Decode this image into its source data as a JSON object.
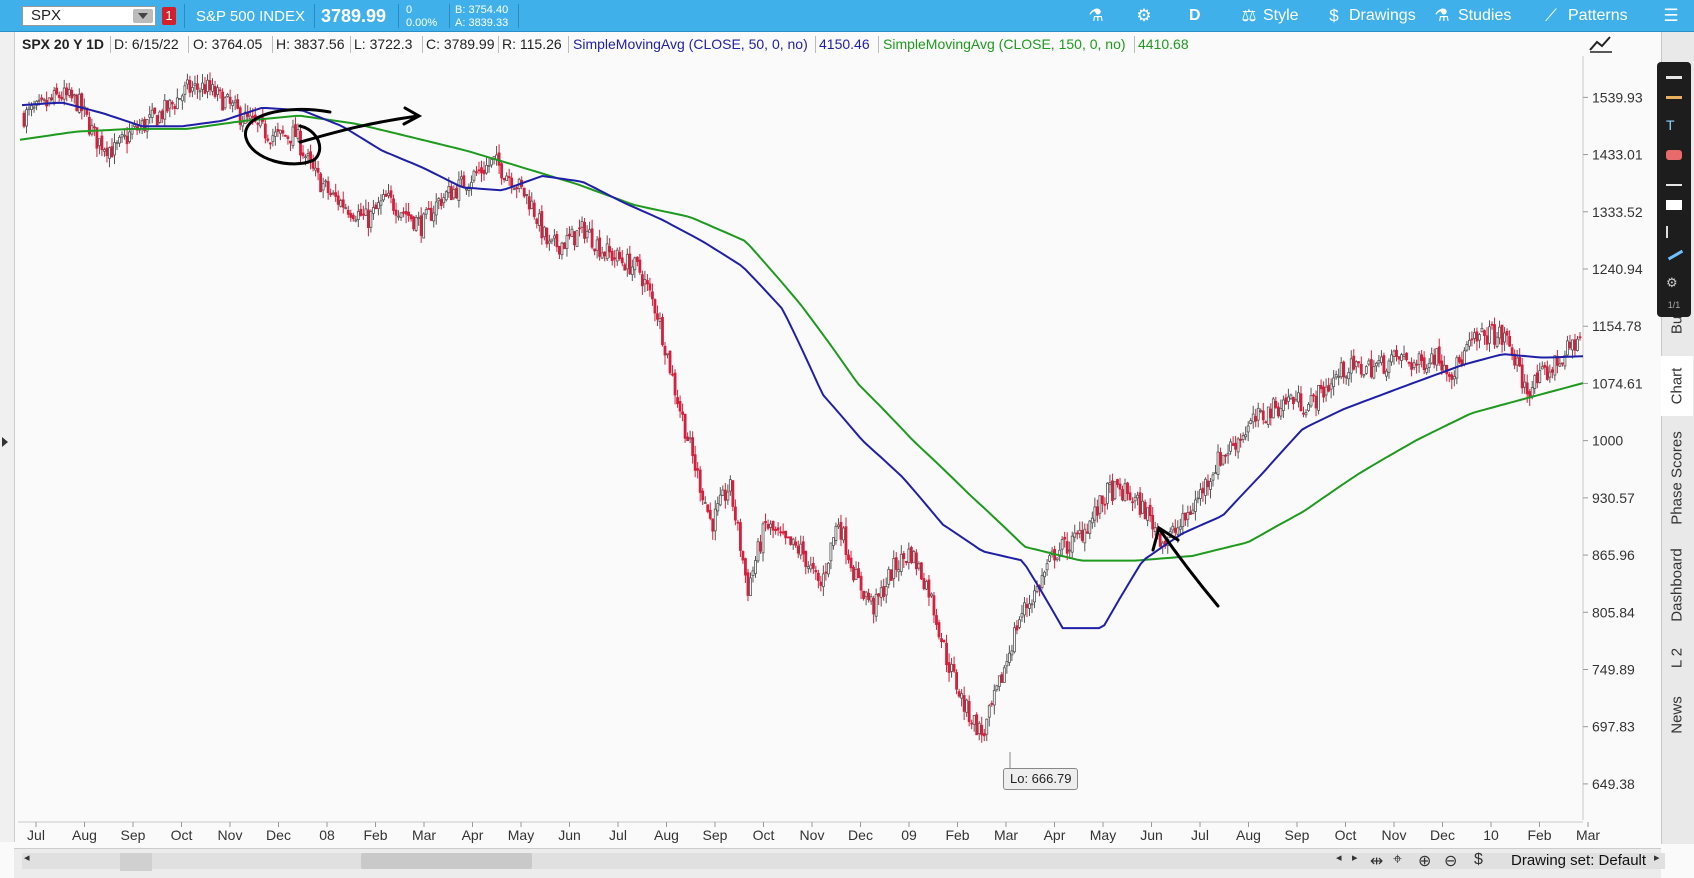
{
  "toolbar": {
    "symbol": "SPX",
    "link_badge": "1",
    "description": "S&P 500 INDEX",
    "last_price": "3789.99",
    "change_abs": "0",
    "change_pct": "0.00%",
    "bid": "B: 3754.40",
    "ask": "A: 3839.33",
    "aggregation": "D",
    "style_label": "Style",
    "drawings_label": "Drawings",
    "studies_label": "Studies",
    "patterns_label": "Patterns"
  },
  "infobar": {
    "title": "SPX 20 Y 1D",
    "date": "D: 6/15/22",
    "open": "O: 3764.05",
    "high": "H: 3837.56",
    "low": "L: 3722.3",
    "close": "C: 3789.99",
    "range": "R: 115.26",
    "sma50_label": "SimpleMovingAvg (CLOSE, 50, 0, no)",
    "sma50_value": "4150.46",
    "sma150_label": "SimpleMovingAvg (CLOSE, 150, 0, no)",
    "sma150_value": "4410.68"
  },
  "colors": {
    "toolbar_bg": "#3fb0ea",
    "up_candle": "#555555",
    "down_candle": "#d3203c",
    "sma50": "#1f1fa8",
    "sma150": "#1e9a1e"
  },
  "chart_data": {
    "type": "line",
    "title": "SPX 20 Y 1D",
    "y_ticks": [
      "1539.93",
      "1433.01",
      "1333.52",
      "1240.94",
      "1154.78",
      "1074.61",
      "1000",
      "930.57",
      "865.96",
      "805.84",
      "749.89",
      "697.83",
      "649.38"
    ],
    "x_ticks": [
      "Jul",
      "Aug",
      "Sep",
      "Oct",
      "Nov",
      "Dec",
      "08",
      "Feb",
      "Mar",
      "Apr",
      "May",
      "Jun",
      "Jul",
      "Aug",
      "Sep",
      "Oct",
      "Nov",
      "Dec",
      "09",
      "Feb",
      "Mar",
      "Apr",
      "May",
      "Jun",
      "Jul",
      "Aug",
      "Sep",
      "Oct",
      "Nov",
      "Dec",
      "10",
      "Feb",
      "Mar"
    ],
    "ylim": [
      630,
      1610
    ],
    "scale": "log",
    "grid": false,
    "series": [
      {
        "name": "SPX",
        "values": [
          1505,
          1520,
          1545,
          1530,
          1460,
          1440,
          1475,
          1495,
          1520,
          1555,
          1560,
          1535,
          1505,
          1480,
          1465,
          1470,
          1400,
          1360,
          1340,
          1320,
          1355,
          1335,
          1310,
          1355,
          1375,
          1400,
          1420,
          1390,
          1350,
          1275,
          1285,
          1305,
          1270,
          1255,
          1240,
          1175,
          1065,
          975,
          900,
          945,
          830,
          900,
          880,
          870,
          830,
          905,
          840,
          810,
          850,
          870,
          830,
          760,
          715,
          690,
          740,
          800,
          830,
          870,
          880,
          905,
          940,
          935,
          915,
          880,
          900,
          935,
          975,
          1000,
          1025,
          1040,
          1055,
          1045,
          1070,
          1095,
          1095,
          1100,
          1110,
          1100,
          1115,
          1090,
          1130,
          1145,
          1135,
          1065,
          1085,
          1110,
          1140
        ]
      },
      {
        "name": "SimpleMovingAvg (CLOSE, 50, 0, no)",
        "values": [
          1525,
          1530,
          1510,
          1485,
          1485,
          1495,
          1520,
          1515,
          1485,
          1440,
          1410,
          1375,
          1370,
          1395,
          1385,
          1350,
          1320,
          1285,
          1245,
          1180,
          1060,
          1000,
          955,
          900,
          870,
          860,
          790,
          790,
          860,
          890,
          910,
          960,
          1015,
          1040,
          1060,
          1080,
          1100,
          1115,
          1110,
          1112
        ]
      },
      {
        "name": "SimpleMovingAvg (CLOSE, 150, 0, no)",
        "values": [
          1460,
          1475,
          1480,
          1480,
          1495,
          1505,
          1490,
          1465,
          1440,
          1410,
          1380,
          1345,
          1325,
          1285,
          1185,
          1075,
          1000,
          935,
          875,
          860,
          860,
          865,
          880,
          915,
          960,
          1000,
          1035,
          1055,
          1075
        ]
      }
    ],
    "annotations": [
      "Lo: 666.79"
    ]
  },
  "bottom": {
    "drawing_set": "Drawing set: Default"
  },
  "right_tabs": [
    "Bu",
    "Chart",
    "Phase Scores",
    "Dashboard",
    "L 2",
    "News"
  ]
}
